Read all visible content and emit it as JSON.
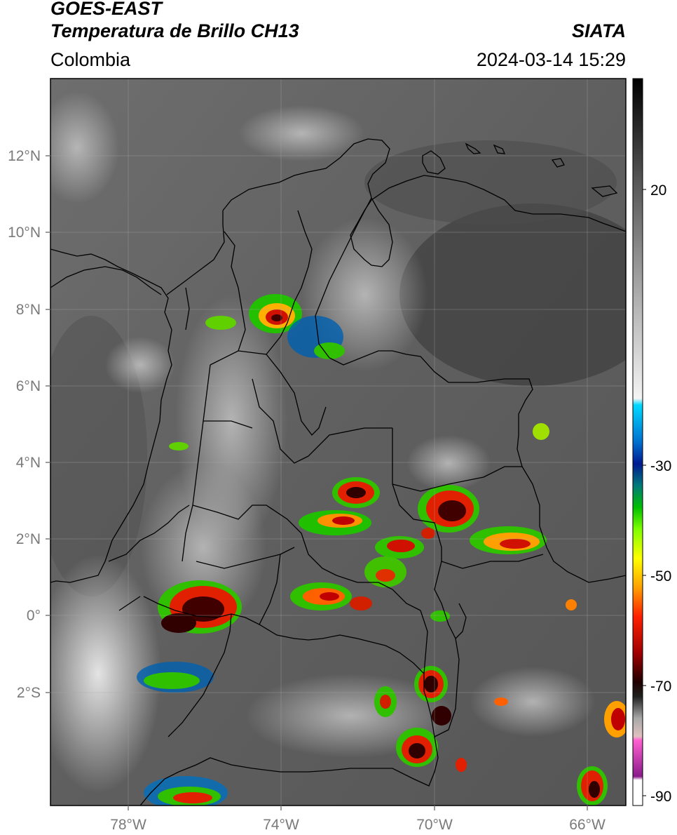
{
  "header": {
    "satellite": "GOES-EAST",
    "product": "Temperatura de Brillo CH13",
    "region": "Colombia",
    "agency": "SIATA",
    "datetime": "2024-03-14 15:29"
  },
  "map": {
    "lat_labels": [
      "12°N",
      "10°N",
      "8°N",
      "6°N",
      "4°N",
      "2°N",
      "0°",
      "2°S"
    ],
    "lon_labels": [
      "78°W",
      "74°W",
      "70°W",
      "66°W"
    ],
    "extent": {
      "lon_min": -80.0,
      "lon_max": -65.0,
      "lat_min": -5.0,
      "lat_max": 14.0
    }
  },
  "colorbar": {
    "labels": [
      "20",
      "-30",
      "-50",
      "-70",
      "-90"
    ],
    "range": [
      -92,
      34
    ],
    "units": "°C"
  }
}
